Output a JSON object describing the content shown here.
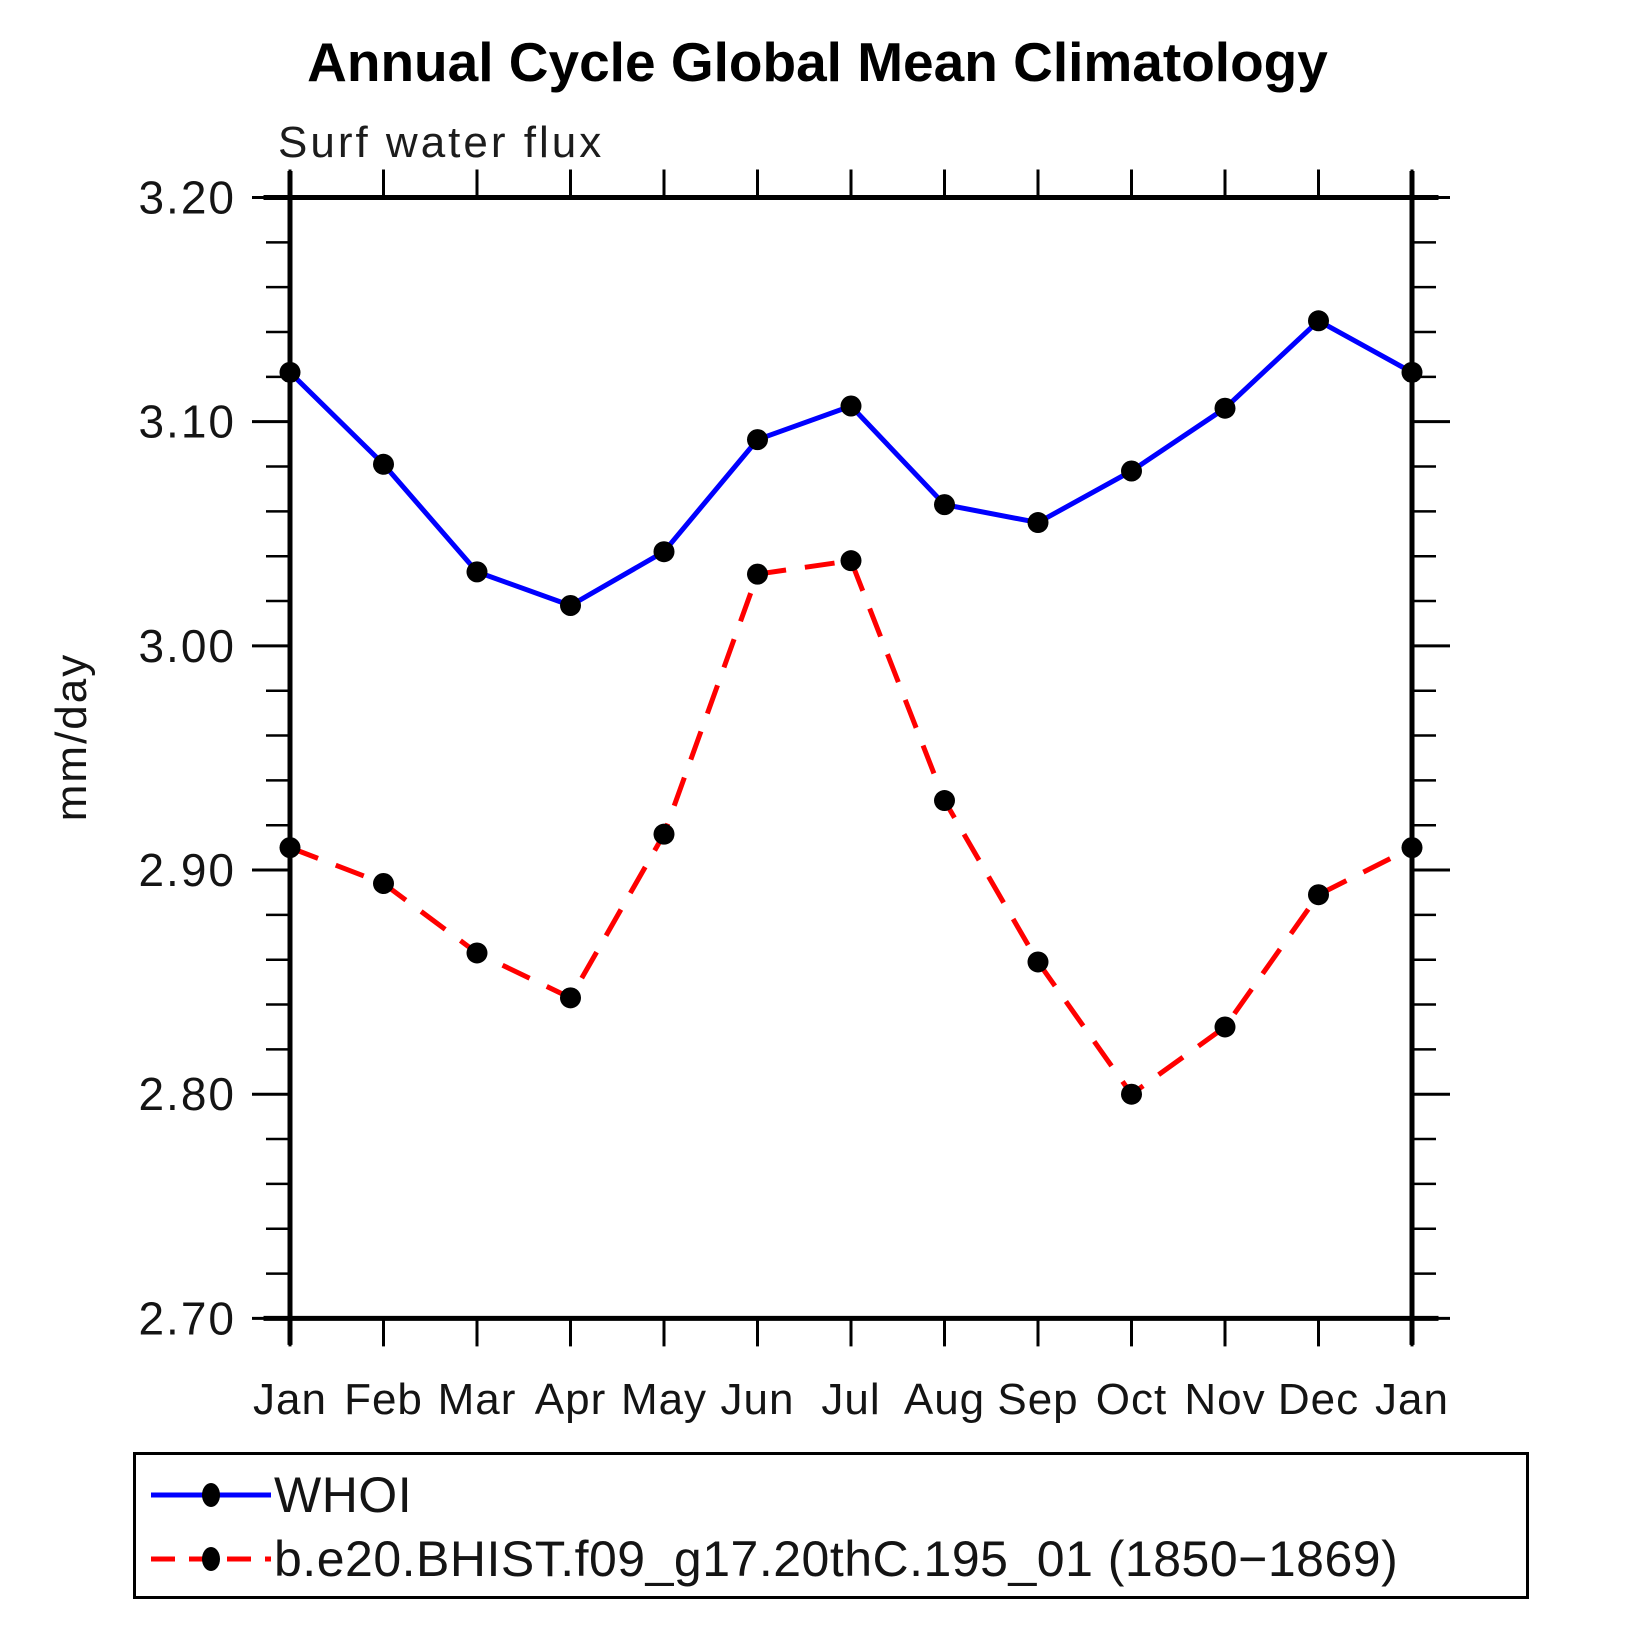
{
  "chart_data": {
    "type": "line",
    "title": "Annual Cycle Global Mean Climatology",
    "subtitle": "Surf water flux",
    "ylabel": "mm/day",
    "xlabel": "",
    "ylim": [
      2.7,
      3.2
    ],
    "ytick_step": 0.1,
    "yminor_step": 0.02,
    "ytick_labels": [
      "3.20",
      "3.10",
      "3.00",
      "2.90",
      "2.80",
      "2.70"
    ],
    "categories": [
      "Jan",
      "Feb",
      "Mar",
      "Apr",
      "May",
      "Jun",
      "Jul",
      "Aug",
      "Sep",
      "Oct",
      "Nov",
      "Dec",
      "Jan"
    ],
    "grid": false,
    "legend_position": "bottom-left-box",
    "series": [
      {
        "name": "WHOI",
        "color": "#0000ff",
        "line_style": "solid",
        "marker": "filled-circle",
        "marker_color": "#000000",
        "values": [
          3.122,
          3.081,
          3.033,
          3.018,
          3.042,
          3.092,
          3.107,
          3.063,
          3.055,
          3.078,
          3.106,
          3.145,
          3.122
        ]
      },
      {
        "name": "b.e20.BHIST.f09_g17.20thC.195_01 (1850−1869)",
        "color": "#ff0000",
        "line_style": "dashed",
        "marker": "filled-circle",
        "marker_color": "#000000",
        "values": [
          2.91,
          2.894,
          2.863,
          2.843,
          2.916,
          3.032,
          3.038,
          2.931,
          2.859,
          2.8,
          2.83,
          2.889,
          2.91
        ]
      }
    ]
  }
}
